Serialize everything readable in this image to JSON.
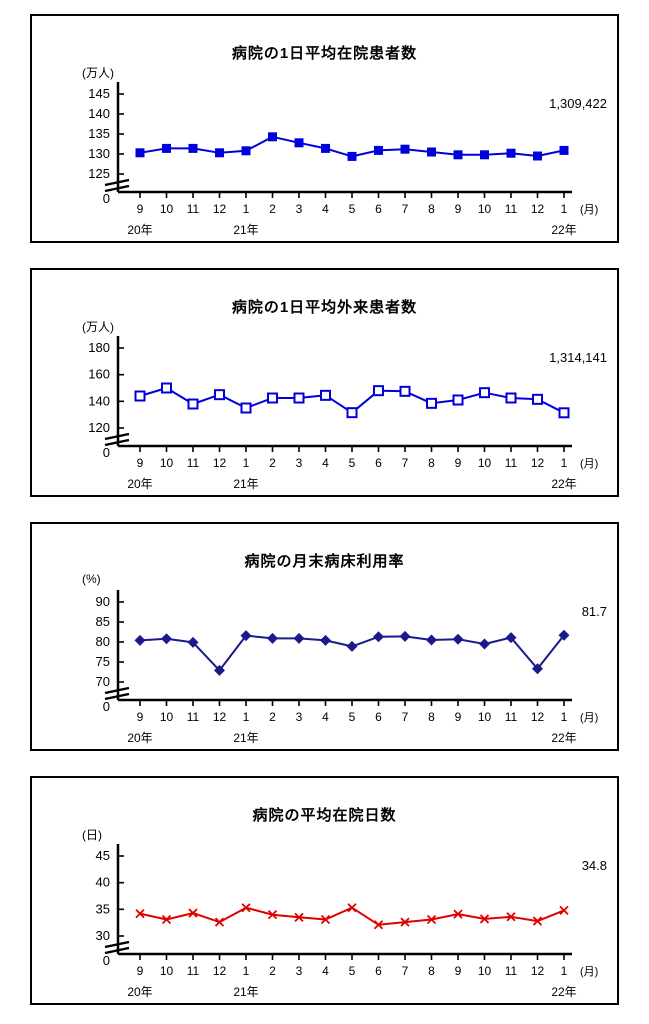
{
  "x_axis": {
    "months": [
      "9",
      "10",
      "11",
      "12",
      "1",
      "2",
      "3",
      "4",
      "5",
      "6",
      "7",
      "8",
      "9",
      "10",
      "11",
      "12",
      "1"
    ],
    "unit_label": "(月)",
    "origin_label": "0",
    "year_labels": [
      {
        "label": "20年",
        "month_index": 0
      },
      {
        "label": "21年",
        "month_index": 4
      },
      {
        "label": "22年",
        "month_index": 16
      }
    ]
  },
  "chart_data": [
    {
      "id": "daily-inpatients",
      "type": "line",
      "title": "病院の1日平均在院患者数",
      "ylabel": "(万人)",
      "yticks": [
        125,
        130,
        135,
        140,
        145
      ],
      "axis_break": true,
      "marker": "square-filled",
      "color": "#0000dd",
      "latest_value_label": "1,309,422",
      "values": [
        130.3,
        131.4,
        131.4,
        130.3,
        130.8,
        134.3,
        132.8,
        131.4,
        129.4,
        130.9,
        131.2,
        130.5,
        129.8,
        129.8,
        130.2,
        129.5,
        130.9
      ]
    },
    {
      "id": "daily-outpatients",
      "type": "line",
      "title": "病院の1日平均外来患者数",
      "ylabel": "(万人)",
      "yticks": [
        120,
        140,
        160,
        180
      ],
      "axis_break": true,
      "marker": "square-open",
      "color": "#0000dd",
      "latest_value_label": "1,314,141",
      "values": [
        144,
        150,
        138,
        145,
        135,
        142.5,
        142.5,
        144.5,
        131.5,
        148,
        147.5,
        138.5,
        141,
        146.5,
        142.5,
        141.5,
        131.4
      ]
    },
    {
      "id": "month-end-bed-utilization",
      "type": "line",
      "title": "病院の月末病床利用率",
      "ylabel": "(%)",
      "yticks": [
        70,
        75,
        80,
        85,
        90
      ],
      "axis_break": true,
      "marker": "diamond-filled",
      "color": "#1a1a8c",
      "latest_value_label": "81.7",
      "values": [
        80.4,
        80.8,
        79.9,
        72.9,
        81.6,
        80.9,
        80.9,
        80.4,
        78.9,
        81.3,
        81.4,
        80.5,
        80.7,
        79.5,
        81.1,
        73.3,
        81.7
      ]
    },
    {
      "id": "average-length-of-stay",
      "type": "line",
      "title": "病院の平均在院日数",
      "ylabel": "(日)",
      "yticks": [
        30,
        35,
        40,
        45
      ],
      "axis_break": true,
      "marker": "x-cross",
      "color": "#e00000",
      "latest_value_label": "34.8",
      "values": [
        34.2,
        33.1,
        34.3,
        32.6,
        35.3,
        34.0,
        33.5,
        33.1,
        35.3,
        32.1,
        32.6,
        33.1,
        34.1,
        33.2,
        33.6,
        32.8,
        34.8
      ]
    }
  ]
}
